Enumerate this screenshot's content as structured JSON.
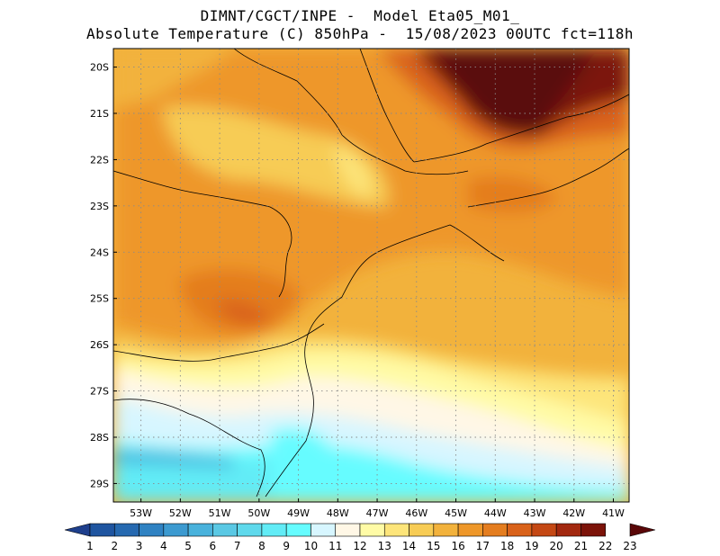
{
  "header": {
    "title_line1": "DIMNT/CGCT/INPE -  Model Eta05_M01_",
    "title_line2": "Absolute Temperature (C) 850hPa -  15/08/2023 00UTC fct=118h"
  },
  "map": {
    "lat_labels": [
      "20S",
      "21S",
      "22S",
      "23S",
      "24S",
      "25S",
      "26S",
      "27S",
      "28S",
      "29S"
    ],
    "lon_labels": [
      "53W",
      "52W",
      "51W",
      "50W",
      "49W",
      "48W",
      "47W",
      "46W",
      "45W",
      "44W",
      "43W",
      "42W",
      "41W"
    ],
    "lat_values": [
      -20,
      -21,
      -22,
      -23,
      -24,
      -25,
      -26,
      -27,
      -28,
      -29
    ],
    "lon_values": [
      -53,
      -52,
      -51,
      -50,
      -49,
      -48,
      -47,
      -46,
      -45,
      -44,
      -43,
      -42,
      -41
    ],
    "lat_range": [
      -29.4,
      -19.6
    ],
    "lon_range": [
      -53.7,
      -40.6
    ],
    "grid": "dotted"
  },
  "colorbar": {
    "labels": [
      "1",
      "2",
      "3",
      "4",
      "5",
      "6",
      "7",
      "8",
      "9",
      "10",
      "11",
      "12",
      "13",
      "14",
      "15",
      "16",
      "17",
      "18",
      "19",
      "20",
      "21",
      "22",
      "23"
    ],
    "colors": [
      "#1e3f8c",
      "#1f55a0",
      "#2669b0",
      "#2f82c2",
      "#3c9ad0",
      "#49b2dc",
      "#5ac8e4",
      "#5fd9ec",
      "#62ecf6",
      "#66fcff",
      "#d7f6ff",
      "#fff7e6",
      "#fffba6",
      "#fde57a",
      "#f7cc55",
      "#f2b23c",
      "#ee9729",
      "#e47d1f",
      "#d9621a",
      "#c44814",
      "#a2280f",
      "#7c1309",
      "#5a0708"
    ]
  }
}
